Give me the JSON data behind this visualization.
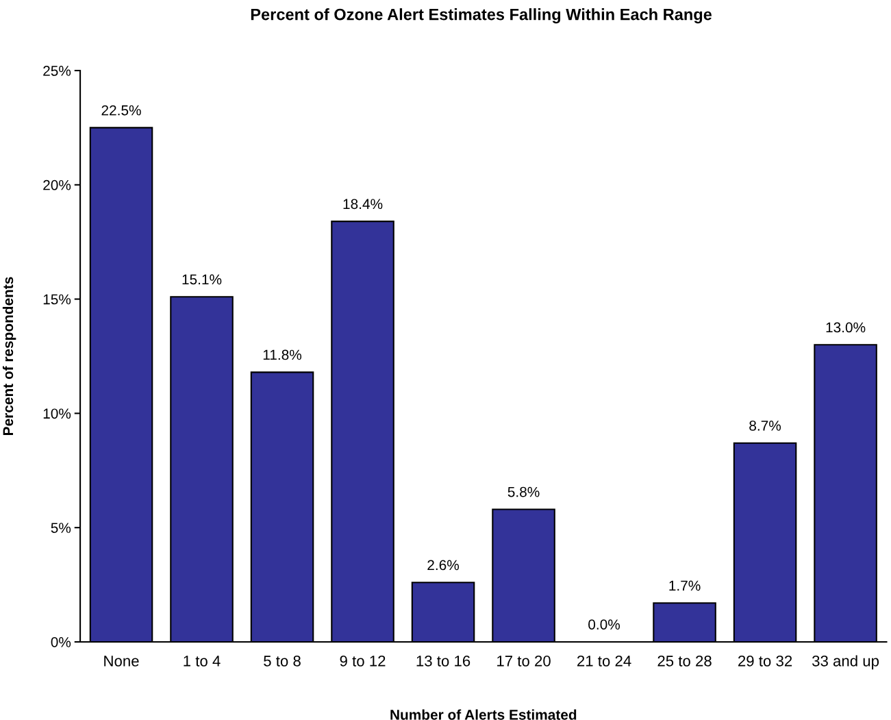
{
  "chart_data": {
    "type": "bar",
    "title": "Percent of Ozone Alert Estimates Falling Within Each Range",
    "xlabel": "Number of Alerts Estimated",
    "ylabel": "Percent of respondents",
    "categories": [
      "None",
      "1 to 4",
      "5 to 8",
      "9 to 12",
      "13 to 16",
      "17 to 20",
      "21 to 24",
      "25 to 28",
      "29 to 32",
      "33 and up"
    ],
    "values": [
      22.5,
      15.1,
      11.8,
      18.4,
      2.6,
      5.8,
      0.0,
      1.7,
      8.7,
      13.0
    ],
    "value_labels": [
      "22.5%",
      "15.1%",
      "11.8%",
      "18.4%",
      "2.6%",
      "5.8%",
      "0.0%",
      "1.7%",
      "8.7%",
      "13.0%"
    ],
    "color": "#333399",
    "ylim": [
      0,
      25
    ],
    "yticks": [
      {
        "value": 0,
        "label": "0%"
      },
      {
        "value": 5,
        "label": "5%"
      },
      {
        "value": 10,
        "label": "10%"
      },
      {
        "value": 15,
        "label": "15%"
      },
      {
        "value": 20,
        "label": "20%"
      },
      {
        "value": 25,
        "label": "25%"
      }
    ],
    "grid": false,
    "legend": false
  }
}
